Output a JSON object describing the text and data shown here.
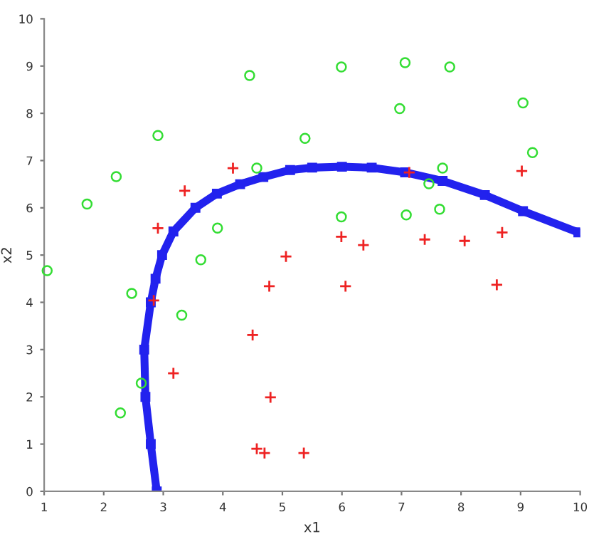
{
  "chart_data": {
    "type": "scatter",
    "xlabel": "x1",
    "ylabel": "x2",
    "xlim": [
      1,
      10
    ],
    "ylim": [
      0,
      10
    ],
    "xticks": [
      1,
      2,
      3,
      4,
      5,
      6,
      7,
      8,
      9,
      10
    ],
    "yticks": [
      0,
      1,
      2,
      3,
      4,
      5,
      6,
      7,
      8,
      9,
      10
    ],
    "grid": false,
    "legend": false,
    "series": [
      {
        "marker": "circle",
        "color": "#33dd33",
        "x": [
          1.05,
          1.72,
          2.21,
          2.91,
          4.45,
          4.57,
          3.91,
          3.63,
          5.38,
          5.99,
          7.06,
          7.81,
          6.97,
          9.04,
          9.2,
          7.69,
          7.46,
          5.99,
          7.08,
          7.64,
          2.47,
          3.31,
          2.63,
          2.28
        ],
        "values": [
          4.67,
          6.08,
          6.66,
          7.53,
          8.8,
          6.84,
          5.57,
          4.9,
          7.47,
          8.98,
          9.07,
          8.98,
          8.1,
          8.22,
          7.17,
          6.84,
          6.51,
          5.81,
          5.85,
          5.97,
          4.19,
          3.73,
          2.29,
          1.66
        ]
      },
      {
        "marker": "cross",
        "color": "#ee2222",
        "x": [
          3.36,
          2.91,
          4.17,
          5.06,
          7.13,
          9.02,
          5.99,
          6.36,
          7.39,
          8.06,
          8.69,
          2.84,
          4.78,
          4.5,
          3.17,
          4.8,
          4.57,
          4.7,
          5.36,
          6.06,
          8.6
        ],
        "values": [
          6.36,
          5.57,
          6.84,
          4.97,
          6.75,
          6.78,
          5.39,
          5.21,
          5.33,
          5.3,
          5.48,
          4.04,
          4.34,
          3.31,
          2.5,
          1.99,
          0.9,
          0.81,
          0.81,
          4.34,
          4.37
        ]
      },
      {
        "type": "line",
        "marker": "square",
        "color": "#2222ee",
        "x": [
          2.89,
          2.79,
          2.7,
          2.68,
          2.79,
          2.87,
          2.98,
          3.17,
          3.54,
          3.9,
          4.29,
          4.68,
          5.13,
          5.5,
          6.0,
          6.5,
          7.06,
          7.69,
          8.4,
          9.04,
          9.97
        ],
        "values": [
          0,
          1,
          2,
          3,
          4,
          4.5,
          5,
          5.5,
          6,
          6.3,
          6.5,
          6.65,
          6.8,
          6.85,
          6.87,
          6.85,
          6.75,
          6.57,
          6.27,
          5.93,
          5.48
        ]
      }
    ]
  }
}
